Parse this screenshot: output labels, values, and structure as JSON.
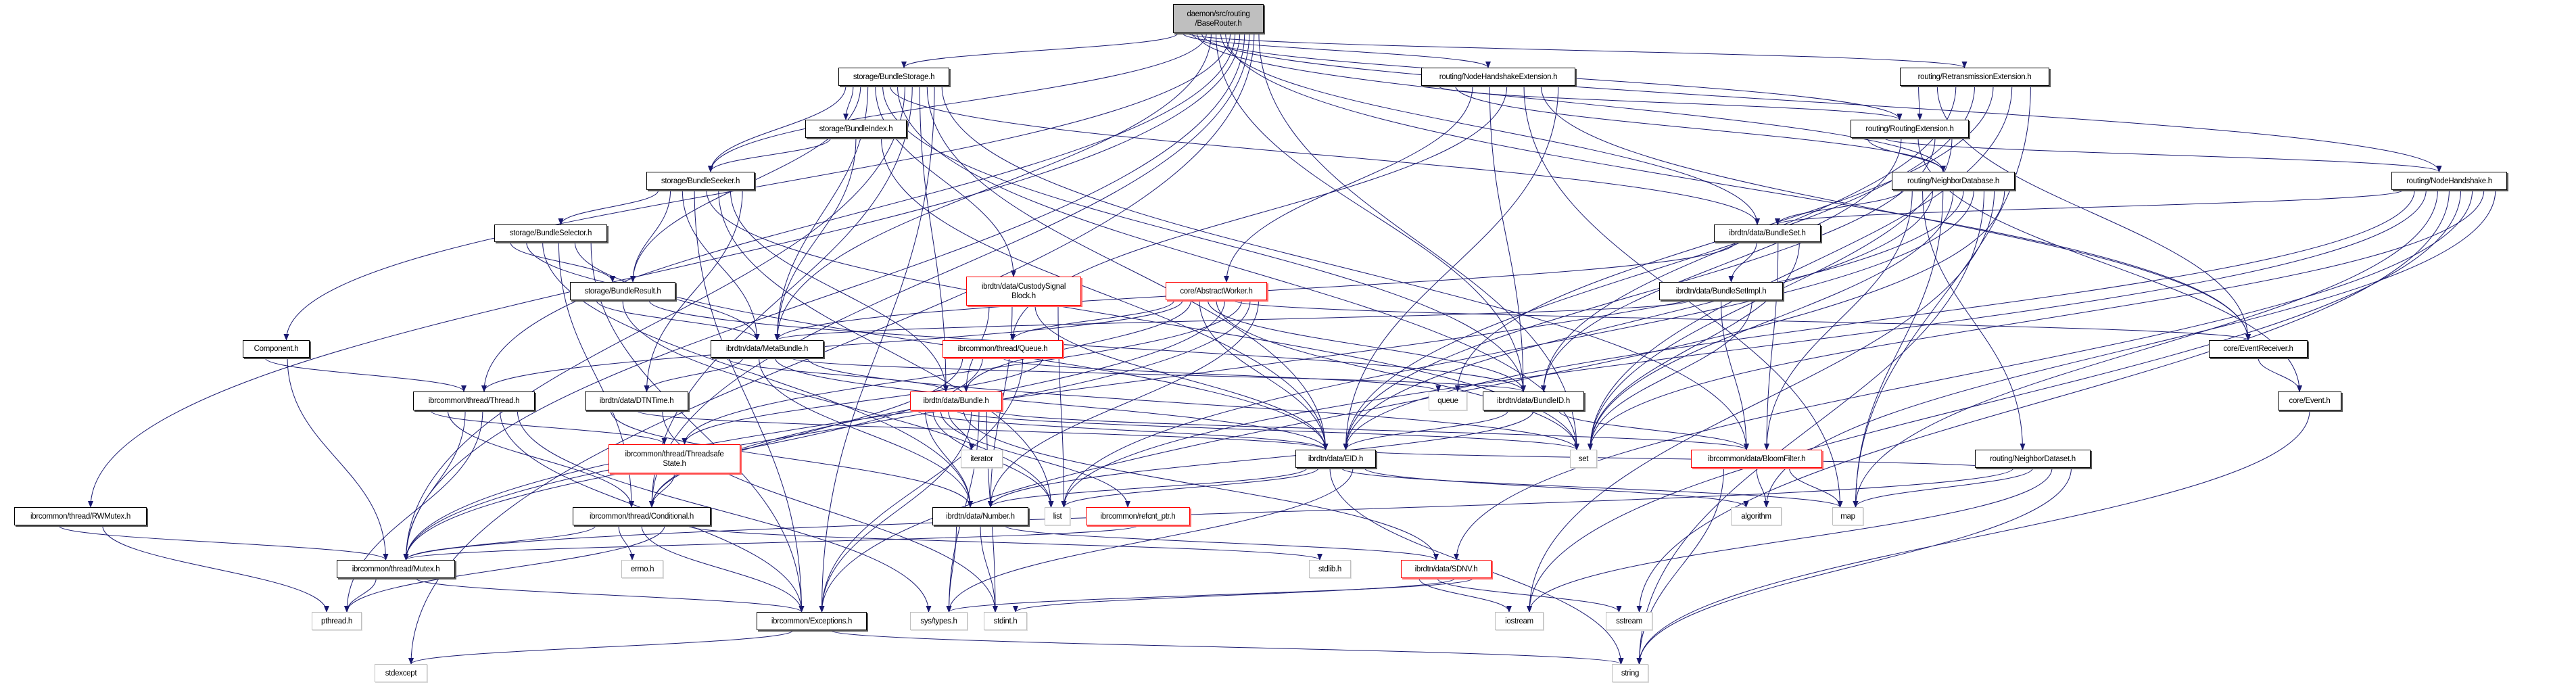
{
  "colors": {
    "edge": "#191970",
    "root_fill": "#bfbfbf",
    "normal_border": "#000000",
    "red_border": "#ff0000",
    "system_border": "#bfbfbf"
  },
  "nodes": [
    {
      "id": "BaseRouter",
      "label": "daemon/src/routing\n/BaseRouter.h",
      "kind": "root"
    },
    {
      "id": "BundleStorage",
      "label": "storage/BundleStorage.h",
      "kind": "normal"
    },
    {
      "id": "NodeHandshakeExtension",
      "label": "routing/NodeHandshakeExtension.h",
      "kind": "normal"
    },
    {
      "id": "RetransmissionExtension",
      "label": "routing/RetransmissionExtension.h",
      "kind": "normal"
    },
    {
      "id": "BundleIndex",
      "label": "storage/BundleIndex.h",
      "kind": "normal"
    },
    {
      "id": "RoutingExtension",
      "label": "routing/RoutingExtension.h",
      "kind": "normal"
    },
    {
      "id": "BundleSeeker",
      "label": "storage/BundleSeeker.h",
      "kind": "normal"
    },
    {
      "id": "NeighborDatabase",
      "label": "routing/NeighborDatabase.h",
      "kind": "normal"
    },
    {
      "id": "NodeHandshake",
      "label": "routing/NodeHandshake.h",
      "kind": "normal"
    },
    {
      "id": "BundleSelector",
      "label": "storage/BundleSelector.h",
      "kind": "normal"
    },
    {
      "id": "BundleSet",
      "label": "ibrdtn/data/BundleSet.h",
      "kind": "normal"
    },
    {
      "id": "BundleResult",
      "label": "storage/BundleResult.h",
      "kind": "normal"
    },
    {
      "id": "CustodySignalBlock",
      "label": "ibrdtn/data/CustodySignal\nBlock.h",
      "kind": "red"
    },
    {
      "id": "AbstractWorker",
      "label": "core/AbstractWorker.h",
      "kind": "red"
    },
    {
      "id": "BundleSetImpl",
      "label": "ibrdtn/data/BundleSetImpl.h",
      "kind": "normal"
    },
    {
      "id": "Component",
      "label": "Component.h",
      "kind": "normal"
    },
    {
      "id": "MetaBundle",
      "label": "ibrdtn/data/MetaBundle.h",
      "kind": "normal"
    },
    {
      "id": "Queue",
      "label": "ibrcommon/thread/Queue.h",
      "kind": "red"
    },
    {
      "id": "EventReceiver",
      "label": "core/EventReceiver.h",
      "kind": "normal"
    },
    {
      "id": "Thread",
      "label": "ibrcommon/thread/Thread.h",
      "kind": "normal"
    },
    {
      "id": "DTNTime",
      "label": "ibrdtn/data/DTNTime.h",
      "kind": "normal"
    },
    {
      "id": "Bundle",
      "label": "ibrdtn/data/Bundle.h",
      "kind": "red"
    },
    {
      "id": "queue",
      "label": "queue",
      "kind": "system"
    },
    {
      "id": "BundleID",
      "label": "ibrdtn/data/BundleID.h",
      "kind": "normal"
    },
    {
      "id": "Event",
      "label": "core/Event.h",
      "kind": "normal"
    },
    {
      "id": "ThreadsafeState",
      "label": "ibrcommon/thread/Threadsafe\nState.h",
      "kind": "red"
    },
    {
      "id": "iterator",
      "label": "iterator",
      "kind": "system"
    },
    {
      "id": "EID",
      "label": "ibrdtn/data/EID.h",
      "kind": "normal"
    },
    {
      "id": "set",
      "label": "set",
      "kind": "system"
    },
    {
      "id": "BloomFilter",
      "label": "ibrcommon/data/BloomFilter.h",
      "kind": "red"
    },
    {
      "id": "NeighborDataset",
      "label": "routing/NeighborDataset.h",
      "kind": "normal"
    },
    {
      "id": "RWMutex",
      "label": "ibrcommon/thread/RWMutex.h",
      "kind": "normal"
    },
    {
      "id": "Conditional",
      "label": "ibrcommon/thread/Conditional.h",
      "kind": "normal"
    },
    {
      "id": "Number",
      "label": "ibrdtn/data/Number.h",
      "kind": "normal"
    },
    {
      "id": "list",
      "label": "list",
      "kind": "system"
    },
    {
      "id": "refcnt_ptr",
      "label": "ibrcommon/refcnt_ptr.h",
      "kind": "red"
    },
    {
      "id": "algorithm",
      "label": "algorithm",
      "kind": "system"
    },
    {
      "id": "map",
      "label": "map",
      "kind": "system"
    },
    {
      "id": "Mutex",
      "label": "ibrcommon/thread/Mutex.h",
      "kind": "normal"
    },
    {
      "id": "errno",
      "label": "errno.h",
      "kind": "system"
    },
    {
      "id": "stdlib",
      "label": "stdlib.h",
      "kind": "system"
    },
    {
      "id": "SDNV",
      "label": "ibrdtn/data/SDNV.h",
      "kind": "red"
    },
    {
      "id": "pthread",
      "label": "pthread.h",
      "kind": "system"
    },
    {
      "id": "Exceptions",
      "label": "ibrcommon/Exceptions.h",
      "kind": "normal"
    },
    {
      "id": "systypes",
      "label": "sys/types.h",
      "kind": "system"
    },
    {
      "id": "stdint",
      "label": "stdint.h",
      "kind": "system"
    },
    {
      "id": "iostream",
      "label": "iostream",
      "kind": "system"
    },
    {
      "id": "sstream",
      "label": "sstream",
      "kind": "system"
    },
    {
      "id": "stdexcept",
      "label": "stdexcept",
      "kind": "system"
    },
    {
      "id": "string",
      "label": "string",
      "kind": "system"
    }
  ],
  "edges": [
    [
      "BaseRouter",
      "BundleStorage"
    ],
    [
      "BaseRouter",
      "NodeHandshakeExtension"
    ],
    [
      "BaseRouter",
      "RetransmissionExtension"
    ],
    [
      "BaseRouter",
      "RoutingExtension"
    ],
    [
      "BaseRouter",
      "NeighborDatabase"
    ],
    [
      "BaseRouter",
      "NodeHandshake"
    ],
    [
      "BaseRouter",
      "BundleSeeker"
    ],
    [
      "BaseRouter",
      "MetaBundle"
    ],
    [
      "BaseRouter",
      "BundleID"
    ],
    [
      "BaseRouter",
      "BundleSet"
    ],
    [
      "BaseRouter",
      "EventReceiver"
    ],
    [
      "BaseRouter",
      "Component"
    ],
    [
      "BaseRouter",
      "Thread"
    ],
    [
      "BaseRouter",
      "RWMutex"
    ],
    [
      "BaseRouter",
      "Mutex"
    ],
    [
      "BaseRouter",
      "Conditional"
    ],
    [
      "BaseRouter",
      "stdexcept"
    ],
    [
      "BaseRouter",
      "set"
    ],
    [
      "BundleStorage",
      "BundleSeeker"
    ],
    [
      "BundleStorage",
      "BundleIndex"
    ],
    [
      "BundleStorage",
      "BundleResult"
    ],
    [
      "BundleStorage",
      "MetaBundle"
    ],
    [
      "BundleStorage",
      "CustodySignalBlock"
    ],
    [
      "BundleStorage",
      "BundleID"
    ],
    [
      "BundleStorage",
      "BundleSet"
    ],
    [
      "BundleStorage",
      "set"
    ],
    [
      "BundleStorage",
      "Mutex"
    ],
    [
      "BundleStorage",
      "Conditional"
    ],
    [
      "BundleStorage",
      "Bundle"
    ],
    [
      "BundleStorage",
      "EID"
    ],
    [
      "BundleStorage",
      "Exceptions"
    ],
    [
      "BundleStorage",
      "BloomFilter"
    ],
    [
      "BundleIndex",
      "BundleSeeker"
    ],
    [
      "BundleIndex",
      "MetaBundle"
    ],
    [
      "BundleIndex",
      "EID"
    ],
    [
      "BundleSeeker",
      "BundleSelector"
    ],
    [
      "BundleSeeker",
      "BundleResult"
    ],
    [
      "BundleSeeker",
      "MetaBundle"
    ],
    [
      "BundleSeeker",
      "Exceptions"
    ],
    [
      "BundleSeeker",
      "set"
    ],
    [
      "BundleSeeker",
      "list"
    ],
    [
      "BundleSeeker",
      "Bundle"
    ],
    [
      "BundleSeeker",
      "DTNTime"
    ],
    [
      "BundleSelector",
      "BundleResult"
    ],
    [
      "BundleSelector",
      "MetaBundle"
    ],
    [
      "BundleSelector",
      "Number"
    ],
    [
      "BundleSelector",
      "Conditional"
    ],
    [
      "BundleSelector",
      "EID"
    ],
    [
      "BundleSelector",
      "Exceptions"
    ],
    [
      "BundleResult",
      "MetaBundle"
    ],
    [
      "BundleResult",
      "list"
    ],
    [
      "BundleResult",
      "BundleID"
    ],
    [
      "Component",
      "Thread"
    ],
    [
      "Component",
      "Mutex"
    ],
    [
      "MetaBundle",
      "Bundle"
    ],
    [
      "MetaBundle",
      "DTNTime"
    ],
    [
      "MetaBundle",
      "Number"
    ],
    [
      "MetaBundle",
      "EID"
    ],
    [
      "MetaBundle",
      "BundleID"
    ],
    [
      "MetaBundle",
      "set"
    ],
    [
      "Thread",
      "ThreadsafeState"
    ],
    [
      "Thread",
      "Conditional"
    ],
    [
      "Thread",
      "Mutex"
    ],
    [
      "Thread",
      "pthread"
    ],
    [
      "Thread",
      "Exceptions"
    ],
    [
      "Thread",
      "systypes"
    ],
    [
      "DTNTime",
      "Number"
    ],
    [
      "DTNTime",
      "EID"
    ],
    [
      "DTNTime",
      "stdint"
    ],
    [
      "ThreadsafeState",
      "Conditional"
    ],
    [
      "Conditional",
      "Mutex"
    ],
    [
      "Conditional",
      "errno"
    ],
    [
      "Conditional",
      "Exceptions"
    ],
    [
      "Conditional",
      "pthread"
    ],
    [
      "Conditional",
      "stdlib"
    ],
    [
      "RWMutex",
      "Mutex"
    ],
    [
      "RWMutex",
      "pthread"
    ],
    [
      "Mutex",
      "pthread"
    ],
    [
      "Mutex",
      "Exceptions"
    ],
    [
      "Exceptions",
      "stdexcept"
    ],
    [
      "Exceptions",
      "string"
    ],
    [
      "CustodySignalBlock",
      "Bundle"
    ],
    [
      "CustodySignalBlock",
      "Number"
    ],
    [
      "CustodySignalBlock",
      "EID"
    ],
    [
      "CustodySignalBlock",
      "list"
    ],
    [
      "AbstractWorker",
      "Queue"
    ],
    [
      "AbstractWorker",
      "Thread"
    ],
    [
      "AbstractWorker",
      "Bundle"
    ],
    [
      "AbstractWorker",
      "EID"
    ],
    [
      "AbstractWorker",
      "BundleID"
    ],
    [
      "AbstractWorker",
      "set"
    ],
    [
      "AbstractWorker",
      "Conditional"
    ],
    [
      "AbstractWorker",
      "EventReceiver"
    ],
    [
      "AbstractWorker",
      "ThreadsafeState"
    ],
    [
      "AbstractWorker",
      "Mutex"
    ],
    [
      "AbstractWorker",
      "Number"
    ],
    [
      "Queue",
      "Conditional"
    ],
    [
      "Queue",
      "Mutex"
    ],
    [
      "Queue",
      "queue"
    ],
    [
      "Queue",
      "Exceptions"
    ],
    [
      "Queue",
      "ThreadsafeState"
    ],
    [
      "Bundle",
      "EID"
    ],
    [
      "Bundle",
      "Number"
    ],
    [
      "Bundle",
      "list"
    ],
    [
      "Bundle",
      "refcnt_ptr"
    ],
    [
      "Bundle",
      "iterator"
    ],
    [
      "Bundle",
      "set"
    ],
    [
      "Bundle",
      "SDNV"
    ],
    [
      "Bundle",
      "Exceptions"
    ],
    [
      "Bundle",
      "systypes"
    ],
    [
      "Bundle",
      "stdint"
    ],
    [
      "Bundle",
      "BloomFilter"
    ],
    [
      "EID",
      "Number"
    ],
    [
      "EID",
      "list"
    ],
    [
      "EID",
      "string"
    ],
    [
      "EID",
      "map"
    ],
    [
      "EID",
      "systypes"
    ],
    [
      "EID",
      "algorithm"
    ],
    [
      "BundleID",
      "EID"
    ],
    [
      "BundleID",
      "Number"
    ],
    [
      "BundleID",
      "BloomFilter"
    ],
    [
      "Number",
      "systypes"
    ],
    [
      "Number",
      "stdint"
    ],
    [
      "Number",
      "SDNV"
    ],
    [
      "refcnt_ptr",
      "Mutex"
    ],
    [
      "SDNV",
      "iostream"
    ],
    [
      "SDNV",
      "sstream"
    ],
    [
      "SDNV",
      "stdint"
    ],
    [
      "SDNV",
      "systypes"
    ],
    [
      "BloomFilter",
      "string"
    ],
    [
      "BloomFilter",
      "algorithm"
    ],
    [
      "BloomFilter",
      "map"
    ],
    [
      "BundleSet",
      "MetaBundle"
    ],
    [
      "BundleSet",
      "BundleSetImpl"
    ],
    [
      "BundleSet",
      "BloomFilter"
    ],
    [
      "BundleSet",
      "set"
    ],
    [
      "BundleSetImpl",
      "MetaBundle"
    ],
    [
      "BundleSetImpl",
      "BloomFilter"
    ],
    [
      "BundleSetImpl",
      "set"
    ],
    [
      "NodeHandshakeExtension",
      "RoutingExtension"
    ],
    [
      "NodeHandshakeExtension",
      "NeighborDatabase"
    ],
    [
      "NodeHandshakeExtension",
      "AbstractWorker"
    ],
    [
      "NodeHandshakeExtension",
      "BundleID"
    ],
    [
      "NodeHandshakeExtension",
      "Queue"
    ],
    [
      "NodeHandshakeExtension",
      "map"
    ],
    [
      "NodeHandshakeExtension",
      "EventReceiver"
    ],
    [
      "NodeHandshakeExtension",
      "EID"
    ],
    [
      "RetransmissionExtension",
      "RoutingExtension"
    ],
    [
      "RetransmissionExtension",
      "EventReceiver"
    ],
    [
      "RetransmissionExtension",
      "BundleID"
    ],
    [
      "RetransmissionExtension",
      "EID"
    ],
    [
      "RetransmissionExtension",
      "queue"
    ],
    [
      "RetransmissionExtension",
      "set"
    ],
    [
      "RetransmissionExtension",
      "map"
    ],
    [
      "RoutingExtension",
      "NeighborDatabase"
    ],
    [
      "RoutingExtension",
      "NodeHandshake"
    ],
    [
      "RoutingExtension",
      "BundleID"
    ],
    [
      "RoutingExtension",
      "Event"
    ],
    [
      "RoutingExtension",
      "EID"
    ],
    [
      "RoutingExtension",
      "set"
    ],
    [
      "NeighborDatabase",
      "BundleSet"
    ],
    [
      "NeighborDatabase",
      "BloomFilter"
    ],
    [
      "NeighborDatabase",
      "NeighborDataset"
    ],
    [
      "NeighborDatabase",
      "EID"
    ],
    [
      "NeighborDatabase",
      "map"
    ],
    [
      "NeighborDatabase",
      "set"
    ],
    [
      "NeighborDatabase",
      "Mutex"
    ],
    [
      "NeighborDatabase",
      "list"
    ],
    [
      "NeighborDatabase",
      "string"
    ],
    [
      "NeighborDatabase",
      "iostream"
    ],
    [
      "NeighborDatabase",
      "Exceptions"
    ],
    [
      "NodeHandshake",
      "BundleSet"
    ],
    [
      "NodeHandshake",
      "EID"
    ],
    [
      "NodeHandshake",
      "list"
    ],
    [
      "NodeHandshake",
      "map"
    ],
    [
      "NodeHandshake",
      "sstream"
    ],
    [
      "NodeHandshake",
      "iostream"
    ],
    [
      "NodeHandshake",
      "SDNV"
    ],
    [
      "NodeHandshake",
      "set"
    ],
    [
      "NodeHandshake",
      "algorithm"
    ],
    [
      "NeighborDataset",
      "EID"
    ],
    [
      "NeighborDataset",
      "Mutex"
    ],
    [
      "NeighborDataset",
      "map"
    ],
    [
      "NeighborDataset",
      "iostream"
    ],
    [
      "NeighborDataset",
      "string"
    ],
    [
      "EventReceiver",
      "Event"
    ],
    [
      "Event",
      "string"
    ]
  ]
}
